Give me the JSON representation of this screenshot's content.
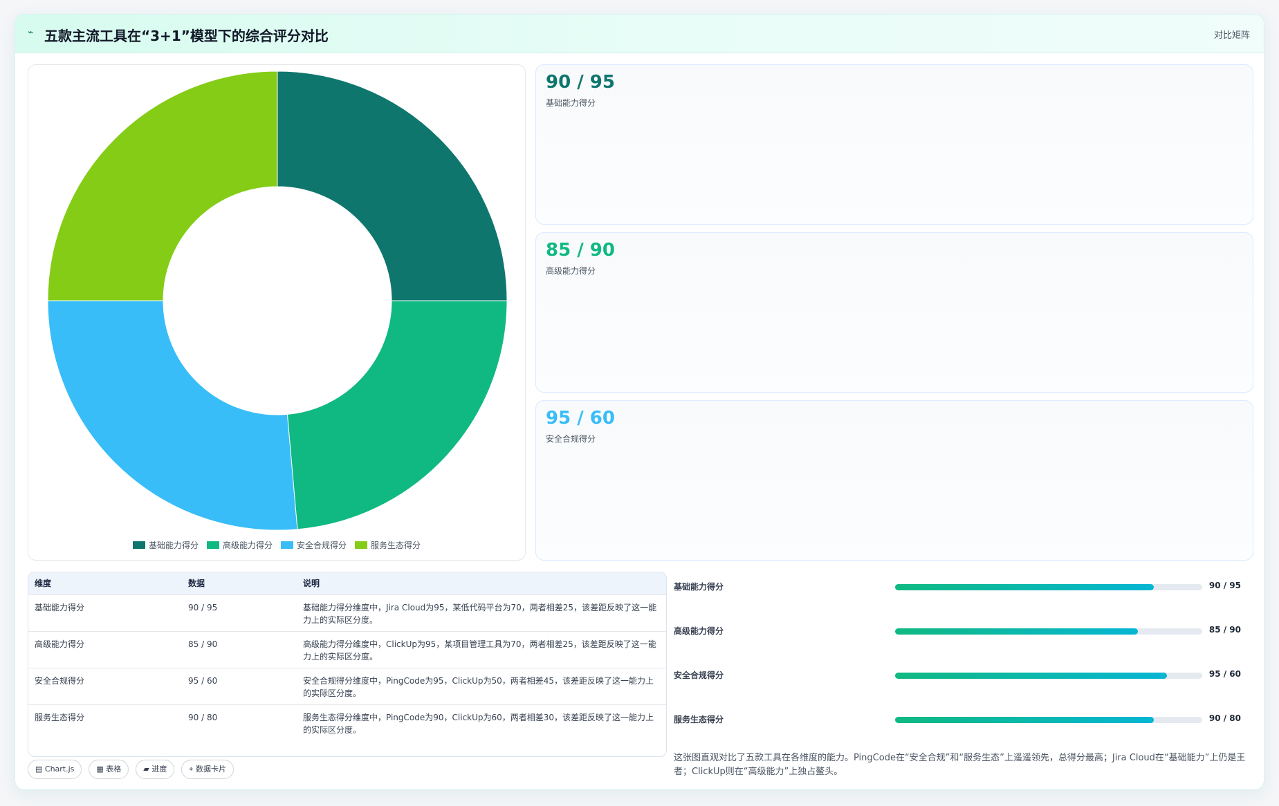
{
  "header": {
    "logo": "⌁",
    "title": "五款主流工具在“3+1”模型下的综合评分对比",
    "tag": "对比矩阵"
  },
  "colors": {
    "dark_teal": "#0f766e",
    "green": "#10b981",
    "sky": "#38bdf8",
    "lime": "#84cc16"
  },
  "chart_data": {
    "type": "pie",
    "variant": "doughnut",
    "title": "",
    "categories": [
      "基础能力得分",
      "高级能力得分",
      "安全合规得分",
      "服务生态得分"
    ],
    "values": [
      90,
      85,
      95,
      90
    ],
    "colors": [
      "#0f766e",
      "#10b981",
      "#38bdf8",
      "#84cc16"
    ],
    "legend_position": "bottom"
  },
  "stat_cards": [
    {
      "value": "90 / 95",
      "label": "基础能力得分",
      "color": "#0f766e"
    },
    {
      "value": "85 / 90",
      "label": "高级能力得分",
      "color": "#10b981"
    },
    {
      "value": "95 / 60",
      "label": "安全合规得分",
      "color": "#38bdf8"
    }
  ],
  "table": {
    "headers": [
      "维度",
      "数据",
      "说明"
    ],
    "rows": [
      {
        "dimension": "基础能力得分",
        "data": "90 / 95",
        "note": "基础能力得分维度中，Jira Cloud为95，某低代码平台为70，两者相差25，该差距反映了这一能力上的实际区分度。"
      },
      {
        "dimension": "高级能力得分",
        "data": "85 / 90",
        "note": "高级能力得分维度中，ClickUp为95，某项目管理工具为70，两者相差25，该差距反映了这一能力上的实际区分度。"
      },
      {
        "dimension": "安全合规得分",
        "data": "95 / 60",
        "note": "安全合规得分维度中，PingCode为95，ClickUp为50，两者相差45，该差距反映了这一能力上的实际区分度。"
      },
      {
        "dimension": "服务生态得分",
        "data": "90 / 80",
        "note": "服务生态得分维度中，PingCode为90，ClickUp为60，两者相差30，该差距反映了这一能力上的实际区分度。"
      }
    ]
  },
  "chips": [
    "▤ Chart.js",
    "▦ 表格",
    "▰ 进度",
    "⌖ 数据卡片"
  ],
  "progress": [
    {
      "label": "基础能力得分",
      "value": "90 / 95",
      "fraction": 0.8421
    },
    {
      "label": "高级能力得分",
      "value": "85 / 90",
      "fraction": 0.7895
    },
    {
      "label": "安全合规得分",
      "value": "95 / 60",
      "fraction": 0.8842
    },
    {
      "label": "服务生态得分",
      "value": "90 / 80",
      "fraction": 0.8421
    }
  ],
  "summary": "这张图直观对比了五款工具在各维度的能力。PingCode在“安全合规”和“服务生态”上遥遥领先，总得分最高；Jira Cloud在“基础能力”上仍是王者；ClickUp则在“高级能力”上独占鳌头。"
}
